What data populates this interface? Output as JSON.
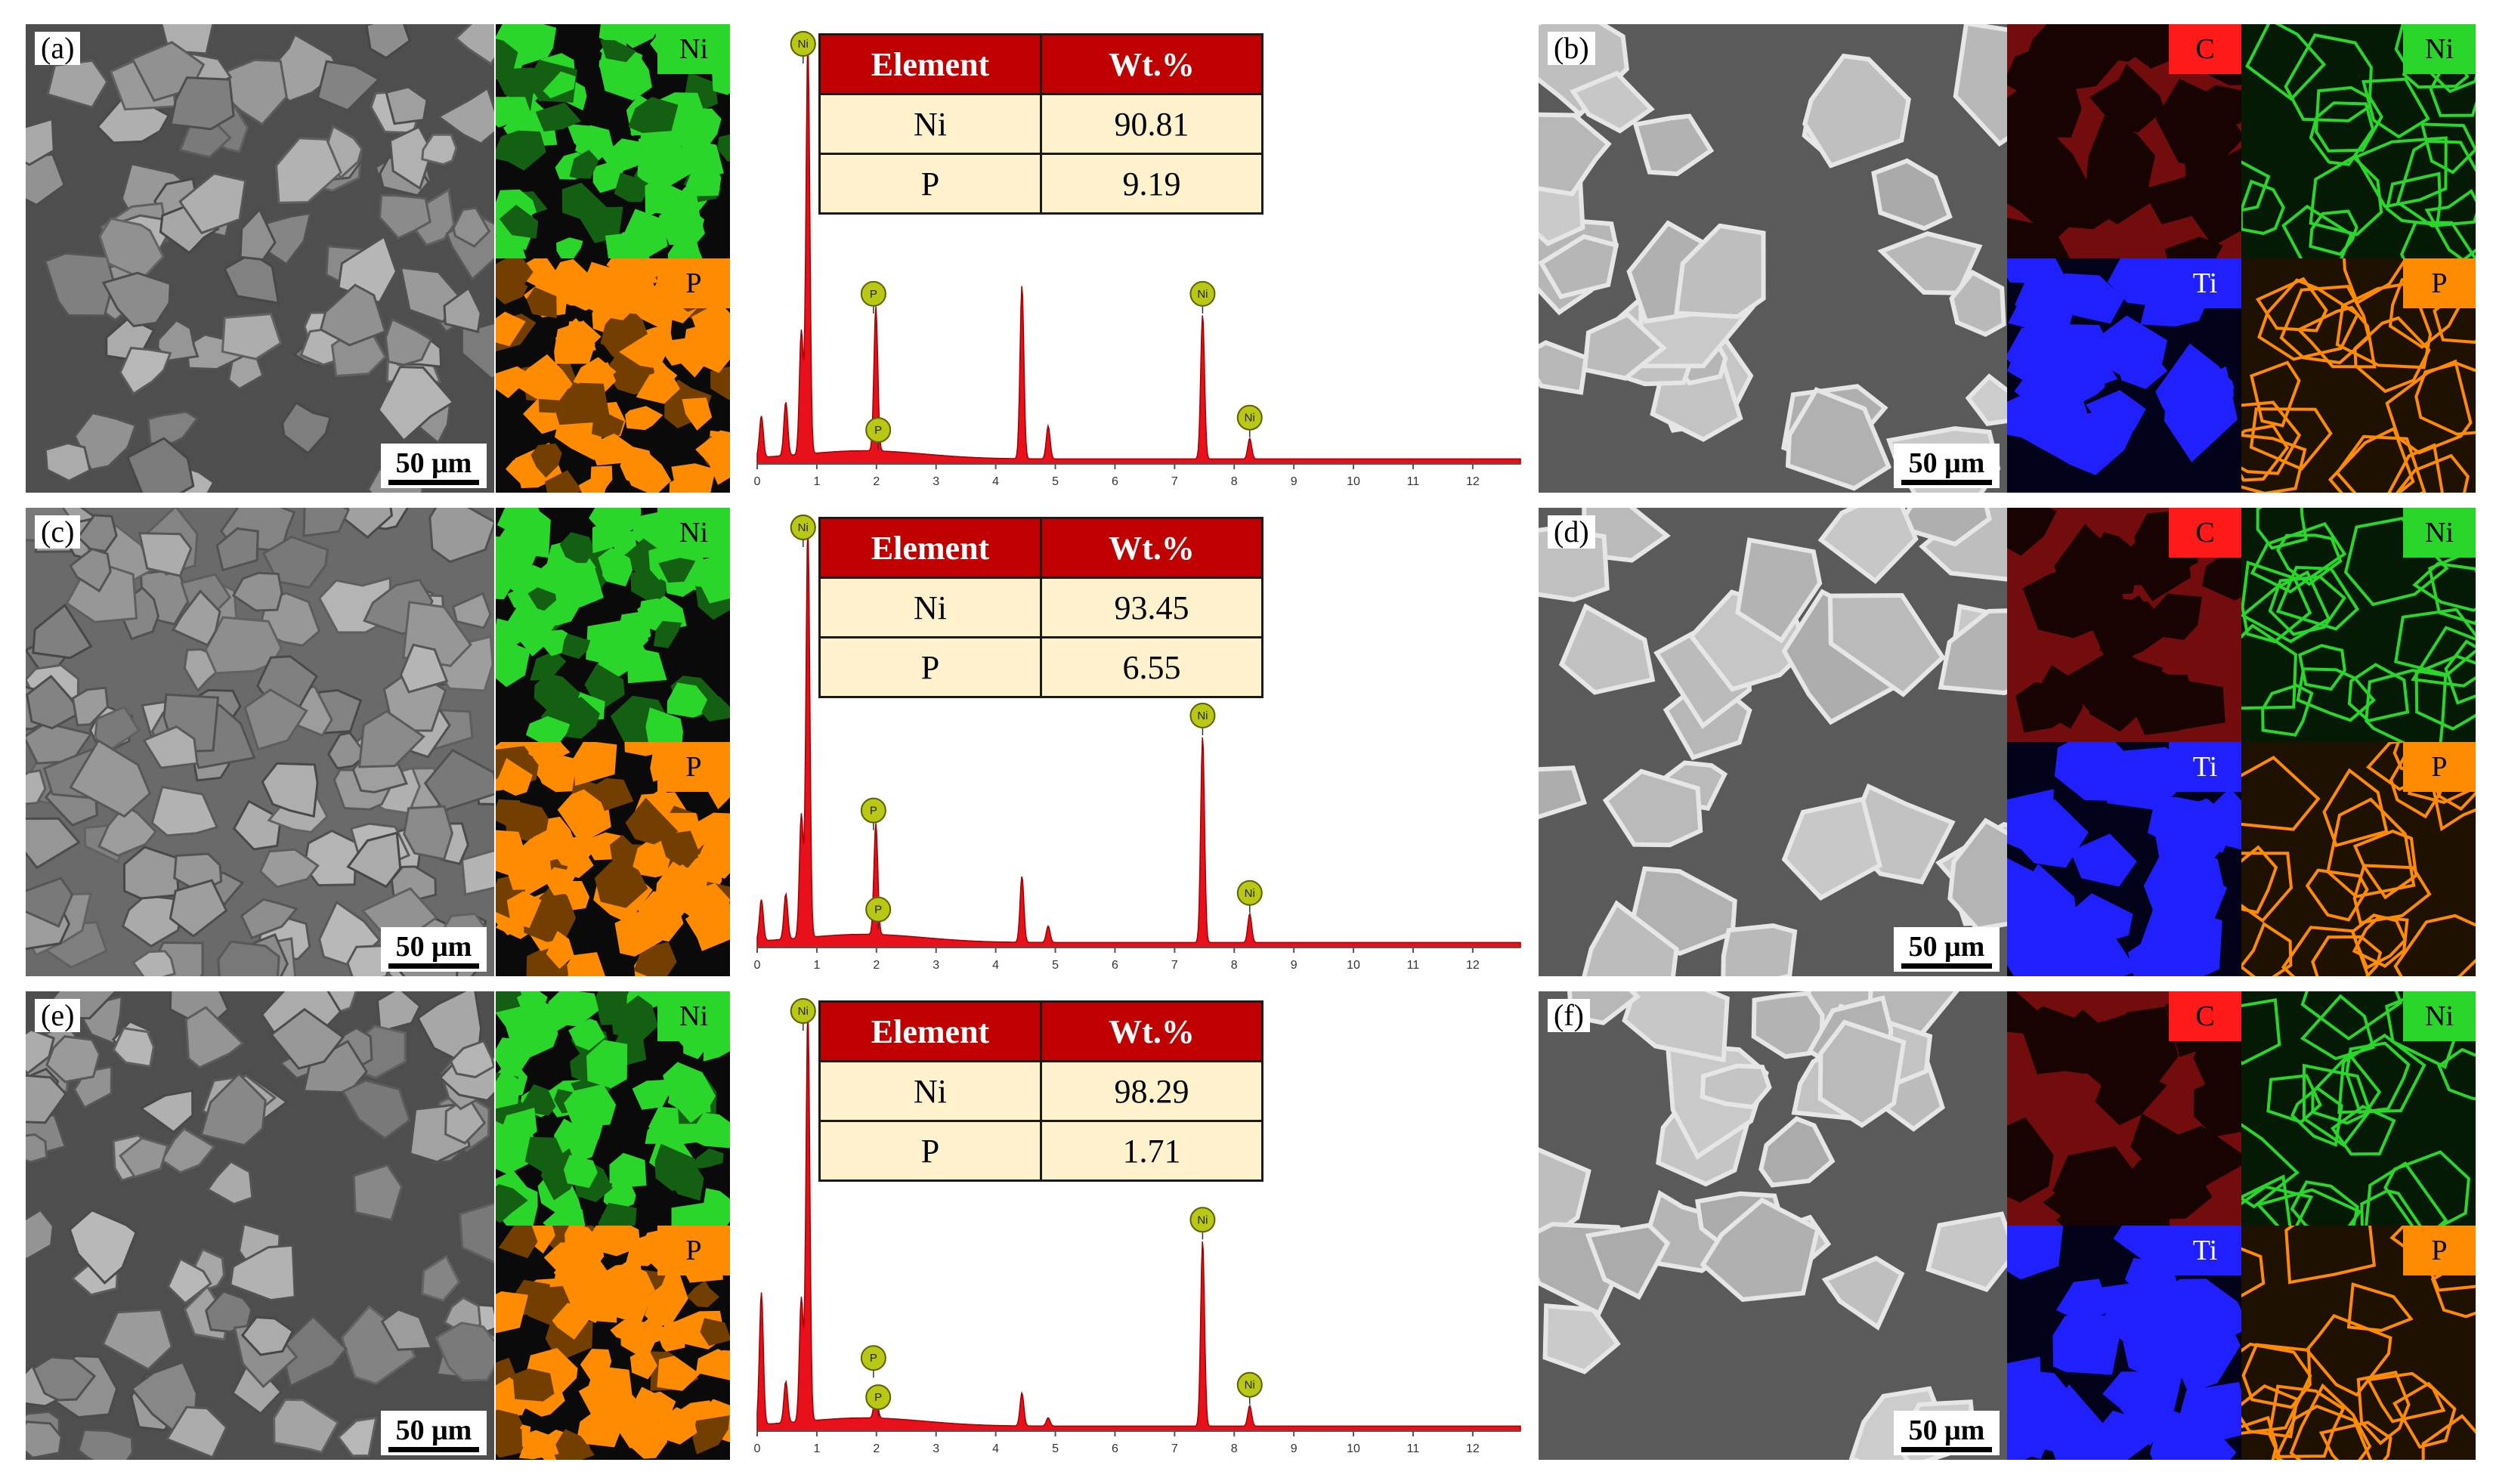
{
  "rows": [
    {
      "left": {
        "letter": "(a)",
        "scale": "50 μm",
        "maps": [
          {
            "tag": "Ni",
            "color": "#2bd62b"
          },
          {
            "tag": "P",
            "color": "#ff8c00"
          }
        ],
        "table": {
          "headers": [
            "Element",
            "Wt.%"
          ],
          "rows": [
            [
              "Ni",
              "90.81"
            ],
            [
              "P",
              "9.19"
            ]
          ]
        },
        "chart_data": {
          "type": "line",
          "xlim": [
            0,
            12.8
          ],
          "xticks": [
            "0",
            "1",
            "2",
            "3",
            "4",
            "5",
            "6",
            "7",
            "8",
            "9",
            "10",
            "11",
            "12"
          ],
          "peaks": [
            {
              "x": 0.07,
              "h": 0.1
            },
            {
              "x": 0.48,
              "h": 0.13
            },
            {
              "x": 0.74,
              "h": 0.3
            },
            {
              "x": 0.85,
              "h": 1.0
            },
            {
              "x": 1.99,
              "h": 0.35
            },
            {
              "x": 4.44,
              "h": 0.42
            },
            {
              "x": 4.88,
              "h": 0.08
            },
            {
              "x": 7.47,
              "h": 0.35
            },
            {
              "x": 8.26,
              "h": 0.05
            }
          ],
          "labels": [
            {
              "text": "Ni",
              "x": 0.77,
              "h": 1.0,
              "dy": -52
            },
            {
              "text": "Ni",
              "x": 0.77,
              "h": 1.0,
              "dy": 0
            },
            {
              "text": "P",
              "x": 1.95,
              "h": 0.35,
              "dy": 0
            },
            {
              "text": "P",
              "x": 2.03,
              "h": 0.02,
              "dy": 0
            },
            {
              "text": "Ni",
              "x": 7.47,
              "h": 0.35,
              "dy": 0
            },
            {
              "text": "Ni",
              "x": 8.26,
              "h": 0.05,
              "dy": 0
            }
          ]
        }
      },
      "right": {
        "letter": "(b)",
        "scale": "50 μm",
        "maps": [
          {
            "tag": "C",
            "color": "#ff1a1a"
          },
          {
            "tag": "Ni",
            "color": "#2bd62b"
          },
          {
            "tag": "Ti",
            "color": "#2020ff"
          },
          {
            "tag": "P",
            "color": "#ff8c00"
          }
        ]
      }
    },
    {
      "left": {
        "letter": "(c)",
        "scale": "50 μm",
        "maps": [
          {
            "tag": "Ni",
            "color": "#2bd62b"
          },
          {
            "tag": "P",
            "color": "#ff8c00"
          }
        ],
        "table": {
          "headers": [
            "Element",
            "Wt.%"
          ],
          "rows": [
            [
              "Ni",
              "93.45"
            ],
            [
              "P",
              "6.55"
            ]
          ]
        },
        "chart_data": {
          "type": "line",
          "xlim": [
            0,
            12.8
          ],
          "xticks": [
            "0",
            "1",
            "2",
            "3",
            "4",
            "5",
            "6",
            "7",
            "8",
            "9",
            "10",
            "11",
            "12"
          ],
          "peaks": [
            {
              "x": 0.07,
              "h": 0.1
            },
            {
              "x": 0.48,
              "h": 0.11
            },
            {
              "x": 0.74,
              "h": 0.3
            },
            {
              "x": 0.85,
              "h": 1.0
            },
            {
              "x": 1.99,
              "h": 0.27
            },
            {
              "x": 4.44,
              "h": 0.16
            },
            {
              "x": 4.88,
              "h": 0.04
            },
            {
              "x": 7.47,
              "h": 0.5
            },
            {
              "x": 8.26,
              "h": 0.07
            }
          ],
          "labels": [
            {
              "text": "Ni",
              "x": 0.77,
              "h": 1.0,
              "dy": -52
            },
            {
              "text": "Ni",
              "x": 0.77,
              "h": 1.0,
              "dy": 0
            },
            {
              "text": "P",
              "x": 1.95,
              "h": 0.27,
              "dy": 0
            },
            {
              "text": "P",
              "x": 2.03,
              "h": 0.03,
              "dy": 0
            },
            {
              "text": "Ni",
              "x": 7.47,
              "h": 0.5,
              "dy": 0
            },
            {
              "text": "Ni",
              "x": 8.26,
              "h": 0.07,
              "dy": 0
            }
          ]
        }
      },
      "right": {
        "letter": "(d)",
        "scale": "50 μm",
        "maps": [
          {
            "tag": "C",
            "color": "#ff1a1a"
          },
          {
            "tag": "Ni",
            "color": "#2bd62b"
          },
          {
            "tag": "Ti",
            "color": "#2020ff"
          },
          {
            "tag": "P",
            "color": "#ff8c00"
          }
        ]
      }
    },
    {
      "left": {
        "letter": "(e)",
        "scale": "50 μm",
        "maps": [
          {
            "tag": "Ni",
            "color": "#2bd62b"
          },
          {
            "tag": "P",
            "color": "#ff8c00"
          }
        ],
        "table": {
          "headers": [
            "Element",
            "Wt.%"
          ],
          "rows": [
            [
              "Ni",
              "98.29"
            ],
            [
              "P",
              "1.71"
            ]
          ]
        },
        "chart_data": {
          "type": "line",
          "xlim": [
            0,
            12.8
          ],
          "xticks": [
            "0",
            "1",
            "2",
            "3",
            "4",
            "5",
            "6",
            "7",
            "8",
            "9",
            "10",
            "11",
            "12"
          ],
          "peaks": [
            {
              "x": 0.07,
              "h": 0.32
            },
            {
              "x": 0.48,
              "h": 0.1
            },
            {
              "x": 0.74,
              "h": 0.3
            },
            {
              "x": 0.85,
              "h": 1.0
            },
            {
              "x": 1.99,
              "h": 0.06
            },
            {
              "x": 4.44,
              "h": 0.08
            },
            {
              "x": 4.88,
              "h": 0.02
            },
            {
              "x": 7.47,
              "h": 0.45
            },
            {
              "x": 8.26,
              "h": 0.05
            }
          ],
          "labels": [
            {
              "text": "Ni",
              "x": 0.77,
              "h": 1.0,
              "dy": -10
            },
            {
              "text": "Ni",
              "x": 0.77,
              "h": 1.0,
              "dy": 0
            },
            {
              "text": "P",
              "x": 1.95,
              "h": 0.06,
              "dy": -30
            },
            {
              "text": "P",
              "x": 2.03,
              "h": 0.02,
              "dy": 0
            },
            {
              "text": "Ni",
              "x": 7.47,
              "h": 0.45,
              "dy": 0
            },
            {
              "text": "Ni",
              "x": 8.26,
              "h": 0.05,
              "dy": 0
            }
          ]
        }
      },
      "right": {
        "letter": "(f)",
        "scale": "50 μm",
        "maps": [
          {
            "tag": "C",
            "color": "#ff1a1a"
          },
          {
            "tag": "Ni",
            "color": "#2bd62b"
          },
          {
            "tag": "Ti",
            "color": "#2020ff"
          },
          {
            "tag": "P",
            "color": "#ff8c00"
          }
        ]
      }
    }
  ]
}
